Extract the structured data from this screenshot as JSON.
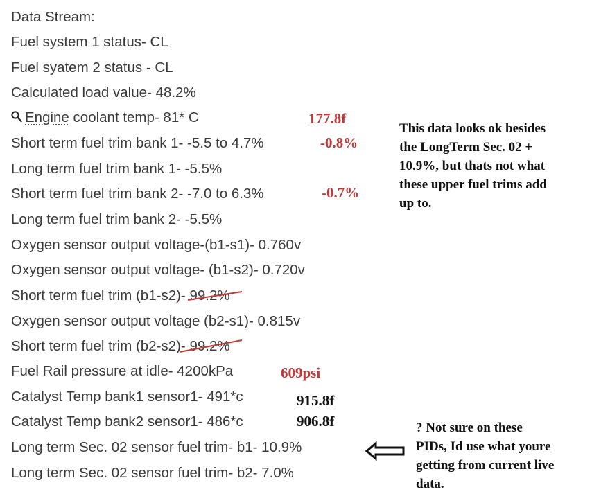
{
  "lines": [
    "Data Stream:",
    "Fuel system 1 status- CL",
    "Fuel syatem 2 status - CL",
    "Calculated load value- 48.2%",
    {
      "link": "Engine",
      "rest": " coolant temp- 81* C"
    },
    "Short term fuel trim bank 1- -5.5 to 4.7%",
    "Long term fuel trim bank 1- -5.5%",
    "Short term fuel trim bank 2- -7.0 to 6.3%",
    "Long term fuel trim bank 2- -5.5%",
    "Oxygen sensor output voltage-(b1-s1)- 0.760v",
    "Oxygen sensor output voltage- (b1-s2)- 0.720v",
    {
      "prefix": "Short term fuel trim (b1-s2)- ",
      "struck": "99.2%"
    },
    "Oxygen sensor output voltage (b2-s1)- 0.815v",
    {
      "prefix": "Short term fuel trim (b2-s2)",
      "struck": "- 99.2%"
    },
    "Fuel Rail pressure at idle- 4200kPa",
    "Catalyst Temp bank1 sensor1- 491*c",
    "Catalyst Temp bank2 sensor1- 486*c",
    "Long term Sec. 02 sensor fuel trim- b1- 10.9%",
    "Long term Sec. 02 sensor fuel trim- b2- 7.0%"
  ],
  "notes": {
    "coolant_f": "177.8f",
    "stft_b1": "-0.8%",
    "stft_b2": "-0.7%",
    "rail_psi": "609psi",
    "cat1_f": "915.8f",
    "cat2_f": "906.8f"
  },
  "comment_right": [
    "This data looks ok besides",
    "the LongTerm Sec. 02 +",
    "10.9%, but thats not what",
    "these upper fuel trims add",
    "up to."
  ],
  "comment_bottom": [
    "? Not sure on these",
    "PIDs, Id use what youre",
    "getting from current live",
    "data."
  ],
  "colors": {
    "annotation_red": "#c0393b",
    "text_gray": "#3a3a3a"
  }
}
